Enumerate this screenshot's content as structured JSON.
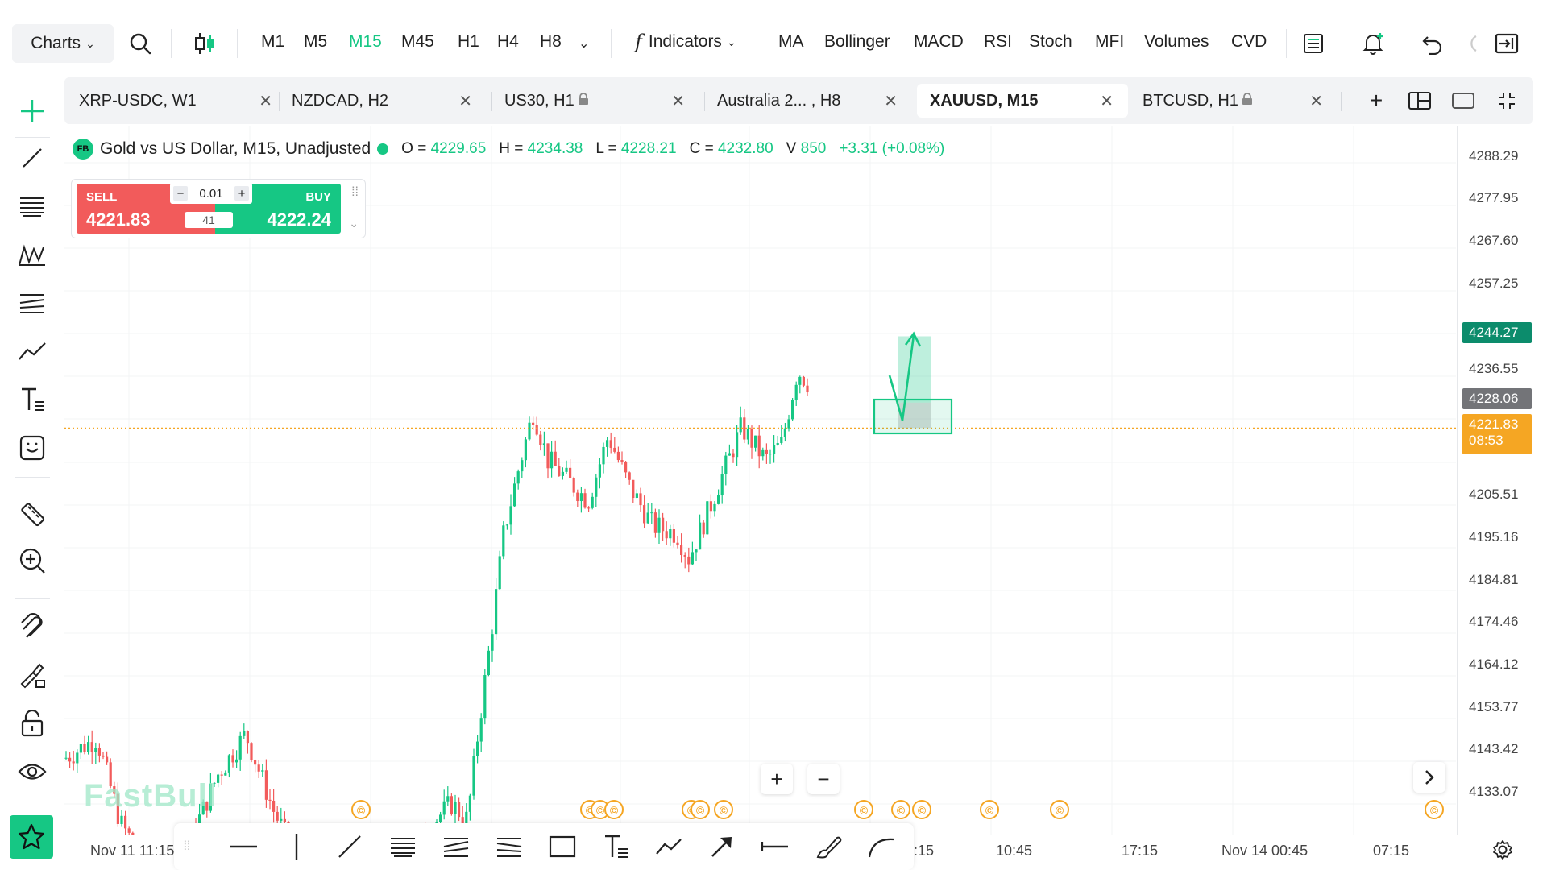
{
  "colors": {
    "accent": "#16c784",
    "sell": "#f25b5b",
    "price_line": "#f5a623",
    "tag_gray": "#737478",
    "tag_teal": "#0c8c6c"
  },
  "toolbar": {
    "charts_label": "Charts",
    "timeframes": [
      "M1",
      "M5",
      "M15",
      "M45",
      "H1",
      "H4",
      "H8"
    ],
    "active_timeframe": "M15",
    "indicators_label": "Indicators",
    "indicator_items": [
      "MA",
      "Bollinger",
      "MACD",
      "RSI",
      "Stoch",
      "MFI",
      "Volumes",
      "CVD"
    ]
  },
  "tabs": [
    {
      "label": "XRP-USDC, W1",
      "locked": false,
      "active": false
    },
    {
      "label": "NZDCAD, H2",
      "locked": false,
      "active": false
    },
    {
      "label": "US30, H1",
      "locked": true,
      "active": false
    },
    {
      "label": "Australia 2... , H8",
      "locked": false,
      "active": false
    },
    {
      "label": "XAUUSD, M15",
      "locked": false,
      "active": true
    },
    {
      "label": "BTCUSD, H1",
      "locked": true,
      "active": false
    }
  ],
  "legend": {
    "badge": "FB",
    "title": "Gold vs US Dollar, M15, Unadjusted",
    "o_label": "O =",
    "o": "4229.65",
    "h_label": "H =",
    "h": "4234.38",
    "l_label": "L =",
    "l": "4228.21",
    "c_label": "C =",
    "c": "4232.80",
    "v_label": "V",
    "v": "850",
    "change": "+3.31 (+0.08%)"
  },
  "trade": {
    "sell_label": "SELL",
    "sell_price": "4221.83",
    "buy_label": "BUY",
    "buy_price": "4222.24",
    "lot": "0.01",
    "spread": "41"
  },
  "price_axis": {
    "ticks": [
      "4288.29",
      "4277.95",
      "4267.60",
      "4257.25",
      "4236.55",
      "4205.51",
      "4195.16",
      "4184.81",
      "4174.46",
      "4164.12",
      "4153.77",
      "4143.42",
      "4133.07"
    ],
    "tag_high": "4244.27",
    "tag_mid": "4228.06",
    "tag_last": "4221.83",
    "tag_countdown": "08:53"
  },
  "time_axis": [
    "Nov 11 11:15",
    ":15",
    "10:45",
    "17:15",
    "Nov 14 00:45",
    "07:15"
  ],
  "watermark": "FastBull",
  "zoom": {
    "in": "+",
    "out": "−"
  }
}
